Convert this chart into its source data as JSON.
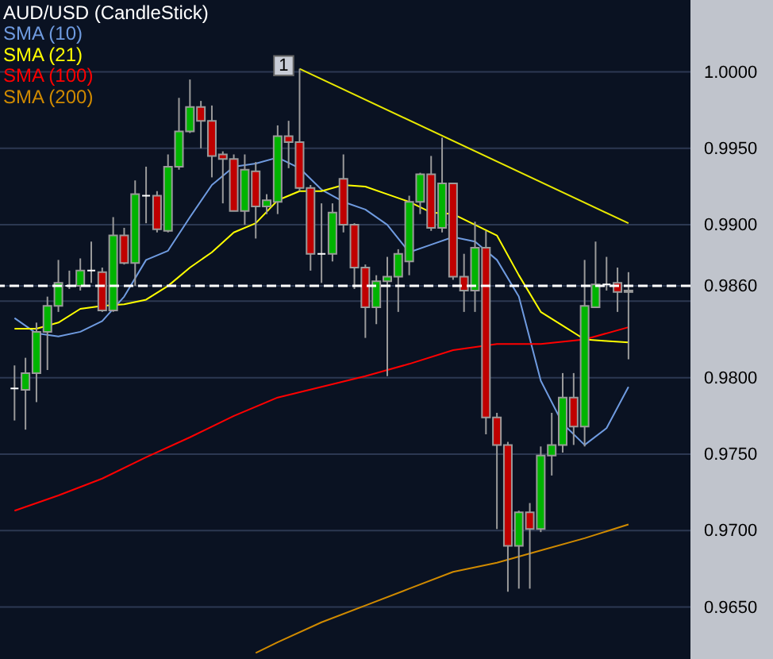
{
  "chart_data": {
    "type": "candlestick",
    "title": "AUD/USD (CandleStick)",
    "categories": [
      null,
      null,
      null,
      null,
      null,
      null,
      null,
      null,
      null,
      null,
      null,
      null,
      null,
      null,
      null,
      null,
      null,
      null,
      null,
      null,
      null,
      null,
      null,
      null,
      null,
      null,
      null,
      null,
      null,
      null,
      null,
      null,
      null,
      null,
      null,
      null,
      null,
      null,
      null,
      null,
      null,
      null,
      null,
      null,
      null,
      null,
      null,
      null,
      null,
      null,
      null,
      null,
      null,
      null,
      null,
      null,
      null
    ],
    "ohlc": [
      [
        0.9793,
        0.9808,
        0.9772,
        0.9793
      ],
      [
        0.9792,
        0.9813,
        0.9766,
        0.9803
      ],
      [
        0.9803,
        0.9836,
        0.9784,
        0.983
      ],
      [
        0.983,
        0.9853,
        0.9805,
        0.9847
      ],
      [
        0.9847,
        0.9877,
        0.9843,
        0.9862
      ],
      [
        0.986,
        0.987,
        0.9858,
        0.986
      ],
      [
        0.986,
        0.9878,
        0.9857,
        0.987
      ],
      [
        0.987,
        0.9889,
        0.9862,
        0.987
      ],
      [
        0.9869,
        0.9872,
        0.9843,
        0.9844
      ],
      [
        0.9844,
        0.9905,
        0.9843,
        0.9893
      ],
      [
        0.9893,
        0.9898,
        0.9874,
        0.9875
      ],
      [
        0.9875,
        0.9929,
        0.986,
        0.992
      ],
      [
        0.9919,
        0.9938,
        0.9901,
        0.9919
      ],
      [
        0.9919,
        0.9922,
        0.9895,
        0.9897
      ],
      [
        0.9896,
        0.9946,
        0.9895,
        0.9938
      ],
      [
        0.9938,
        0.9983,
        0.9936,
        0.9961
      ],
      [
        0.9961,
        0.9995,
        0.996,
        0.9977
      ],
      [
        0.9977,
        0.9981,
        0.995,
        0.9968
      ],
      [
        0.9968,
        0.9978,
        0.9931,
        0.9945
      ],
      [
        0.9946,
        0.9948,
        0.9914,
        0.9943
      ],
      [
        0.9943,
        0.9946,
        0.9909,
        0.9909
      ],
      [
        0.9909,
        0.9946,
        0.99,
        0.9936
      ],
      [
        0.9935,
        0.9941,
        0.9891,
        0.9912
      ],
      [
        0.9912,
        0.992,
        0.9907,
        0.9916
      ],
      [
        0.9915,
        0.9965,
        0.9907,
        0.9958
      ],
      [
        0.9958,
        0.9968,
        0.9937,
        0.9954
      ],
      [
        0.9954,
        1.0002,
        0.9922,
        0.9924
      ],
      [
        0.9924,
        0.9926,
        0.987,
        0.9881
      ],
      [
        0.9881,
        0.9914,
        0.9862,
        0.9881
      ],
      [
        0.9881,
        0.9914,
        0.9876,
        0.9908
      ],
      [
        0.993,
        0.9946,
        0.9895,
        0.99
      ],
      [
        0.99,
        0.9901,
        0.9858,
        0.9872
      ],
      [
        0.9872,
        0.9874,
        0.9826,
        0.9846
      ],
      [
        0.9846,
        0.9867,
        0.9835,
        0.9863
      ],
      [
        0.9863,
        0.9879,
        0.9801,
        0.9866
      ],
      [
        0.9866,
        0.9884,
        0.9843,
        0.9881
      ],
      [
        0.9876,
        0.9919,
        0.9867,
        0.9915
      ],
      [
        0.9915,
        0.9934,
        0.9907,
        0.9933
      ],
      [
        0.9933,
        0.9945,
        0.9896,
        0.9898
      ],
      [
        0.9898,
        0.9957,
        0.9895,
        0.9927
      ],
      [
        0.9927,
        0.9927,
        0.9864,
        0.9866
      ],
      [
        0.9866,
        0.9881,
        0.9843,
        0.9857
      ],
      [
        0.9857,
        0.9902,
        0.9843,
        0.9885
      ],
      [
        0.9885,
        0.9896,
        0.9763,
        0.9774
      ],
      [
        0.9774,
        0.9777,
        0.9701,
        0.9756
      ],
      [
        0.9756,
        0.9758,
        0.966,
        0.969
      ],
      [
        0.969,
        0.9713,
        0.9662,
        0.9712
      ],
      [
        0.9712,
        0.9718,
        0.9662,
        0.9701
      ],
      [
        0.9701,
        0.9755,
        0.9699,
        0.9749
      ],
      [
        0.9749,
        0.9777,
        0.9736,
        0.9756
      ],
      [
        0.9756,
        0.9803,
        0.9751,
        0.9787
      ],
      [
        0.9787,
        0.9803,
        0.9756,
        0.9768
      ],
      [
        0.9768,
        0.9877,
        0.9755,
        0.9847
      ],
      [
        0.9846,
        0.9889,
        0.9846,
        0.9861
      ],
      [
        0.9861,
        0.9879,
        0.9857,
        0.9861
      ],
      [
        0.9862,
        0.9872,
        0.9843,
        0.9856
      ],
      [
        0.9856,
        0.9869,
        0.9812,
        0.9857
      ]
    ],
    "colors": [
      "#ffffff",
      "#00b400",
      "#00b400",
      "#00b400",
      "#00b400",
      "#ffffff",
      "#00b400",
      "#ffffff",
      "#c00000",
      "#00b400",
      "#c00000",
      "#00b400",
      "#ffffff",
      "#c00000",
      "#00b400",
      "#00b400",
      "#00b400",
      "#c00000",
      "#c00000",
      "#c00000",
      "#c00000",
      "#00b400",
      "#c00000",
      "#00b400",
      "#00b400",
      "#c00000",
      "#c00000",
      "#c00000",
      "#ffffff",
      "#00b400",
      "#c00000",
      "#c00000",
      "#c00000",
      "#00b400",
      "#00b400",
      "#00b400",
      "#00b400",
      "#00b400",
      "#c00000",
      "#00b400",
      "#c00000",
      "#c00000",
      "#00b400",
      "#c00000",
      "#c00000",
      "#c00000",
      "#00b400",
      "#c00000",
      "#00b400",
      "#00b400",
      "#00b400",
      "#c00000",
      "#00b400",
      "#00b400",
      "#ffffff",
      "#c00000",
      "#00b400"
    ],
    "series": [
      {
        "name": "SMA (10)",
        "type": "line",
        "color": "#6f9be0",
        "values": [
          0.9839,
          null,
          0.9829,
          null,
          0.9827,
          null,
          0.983,
          null,
          0.9837,
          null,
          0.9853,
          null,
          0.9877,
          null,
          0.9883,
          null,
          0.9905,
          null,
          0.9926,
          null,
          0.9938,
          null,
          0.994,
          null,
          0.9944,
          null,
          0.9937,
          null,
          0.9923,
          null,
          0.9915,
          null,
          0.991,
          null,
          0.99,
          null,
          0.9882,
          null,
          0.9887,
          null,
          0.9892,
          null,
          0.9889,
          null,
          0.9877,
          null,
          0.9853,
          null,
          0.9798,
          null,
          0.977,
          null,
          0.9756,
          null,
          0.9767,
          null,
          0.9794
        ]
      },
      {
        "name": "SMA (21)",
        "type": "line",
        "color": "#ffff00",
        "values": [
          0.9832,
          null,
          0.9832,
          null,
          0.9836,
          null,
          0.9845,
          null,
          0.9847,
          null,
          0.9848,
          null,
          0.9851,
          null,
          0.986,
          null,
          0.9872,
          null,
          0.9882,
          null,
          0.9895,
          null,
          0.9901,
          null,
          0.9916,
          null,
          0.9922,
          null,
          0.9922,
          null,
          0.9926,
          null,
          0.9925,
          null,
          0.992,
          null,
          0.9915,
          null,
          0.9908,
          null,
          0.9907,
          null,
          0.99,
          null,
          0.9893,
          null,
          0.9867,
          null,
          0.9843,
          null,
          0.9834,
          null,
          0.9825,
          null,
          0.9824,
          null,
          0.9823
        ]
      },
      {
        "name": "SMA (100)",
        "type": "line",
        "color": "#ff0000",
        "values": [
          0.9713,
          null,
          null,
          null,
          0.9723,
          null,
          null,
          null,
          0.9734,
          null,
          null,
          null,
          0.9748,
          null,
          null,
          null,
          0.9761,
          null,
          null,
          null,
          0.9775,
          null,
          null,
          null,
          0.9787,
          null,
          null,
          null,
          0.9794,
          null,
          null,
          null,
          0.9801,
          null,
          null,
          null,
          0.9809,
          null,
          null,
          null,
          0.9818,
          null,
          null,
          null,
          0.9822,
          null,
          null,
          null,
          0.9822,
          null,
          null,
          null,
          0.9825,
          null,
          null,
          null,
          0.9833
        ]
      },
      {
        "name": "SMA (200)",
        "type": "line",
        "color": "#d08a00",
        "values": [
          null,
          null,
          null,
          null,
          null,
          null,
          null,
          null,
          null,
          null,
          null,
          null,
          null,
          null,
          null,
          null,
          null,
          null,
          null,
          null,
          null,
          null,
          0.962,
          null,
          0.9627,
          null,
          null,
          null,
          0.964,
          null,
          null,
          null,
          0.9651,
          null,
          null,
          null,
          0.9662,
          null,
          null,
          null,
          0.9673,
          null,
          null,
          null,
          0.9679,
          null,
          null,
          null,
          0.9687,
          null,
          null,
          null,
          0.9695,
          null,
          null,
          null,
          0.9704
        ]
      },
      {
        "type": "line",
        "color": "#e8e800",
        "values": [
          null,
          null,
          null,
          null,
          null,
          null,
          null,
          null,
          null,
          null,
          null,
          null,
          null,
          null,
          null,
          null,
          null,
          null,
          null,
          null,
          null,
          null,
          null,
          null,
          null,
          null,
          1.0002,
          null,
          null,
          null,
          null,
          null,
          null,
          null,
          null,
          null,
          null,
          null,
          null,
          null,
          null,
          null,
          null,
          null,
          null,
          null,
          null,
          null,
          null,
          null,
          null,
          null,
          null,
          null,
          null,
          null,
          0.9901
        ]
      }
    ],
    "annotations": [
      "1"
    ],
    "ref_lines": [
      {
        "axis": "y",
        "value": 0.986,
        "color": "#ffffff",
        "line_style": "dashed"
      }
    ],
    "ylim": [
      0.9616,
      1.0047
    ],
    "yticks": [
      {
        "value": 0.965,
        "label": "0.9650"
      },
      {
        "value": 0.97,
        "label": "0.9700"
      },
      {
        "value": 0.975,
        "label": "0.9750"
      },
      {
        "value": 0.98,
        "label": "0.9800"
      },
      {
        "value": 0.985,
        "label": null
      },
      {
        "value": 0.986,
        "label": "0.9860"
      },
      {
        "value": 0.99,
        "label": "0.9900"
      },
      {
        "value": 0.995,
        "label": "0.9950"
      },
      {
        "value": 1.0,
        "label": "1.0000"
      }
    ],
    "grid": "y",
    "legend": "top left",
    "tick_labels": "y"
  }
}
